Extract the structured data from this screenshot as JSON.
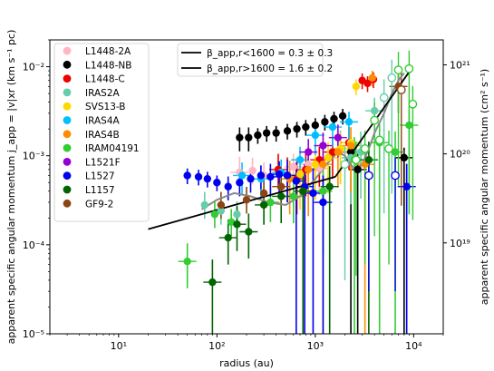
{
  "chart_data": {
    "type": "scatter",
    "xlabel": "radius (au)",
    "ylabel": "apparent specific angular momentum j_app = |v|xr (km s⁻¹ pc)",
    "ylabel_right": "apparent specific angular momentum (cm² s⁻¹)",
    "x_scale": "log",
    "y_scale": "log",
    "xlim": [
      2,
      20000
    ],
    "ylim": [
      1e-05,
      0.02
    ],
    "x_ticks": [
      {
        "v": 10,
        "label": "10¹"
      },
      {
        "v": 100,
        "label": "10²"
      },
      {
        "v": 1000,
        "label": "10³"
      },
      {
        "v": 10000,
        "label": "10⁴"
      }
    ],
    "y_ticks": [
      {
        "v": 1e-05,
        "label": "10⁻⁵"
      },
      {
        "v": 0.0001,
        "label": "10⁻⁴"
      },
      {
        "v": 0.001,
        "label": "10⁻³"
      },
      {
        "v": 0.01,
        "label": "10⁻²"
      }
    ],
    "y_right_ticks": [
      {
        "v": 3.24e+19,
        "label": "10¹⁹"
      },
      {
        "v": 3.24e+20,
        "label": "10²⁰"
      },
      {
        "v": 3.24e+21,
        "label": "10²¹"
      }
    ],
    "fits": [
      {
        "name": "β_app,r<1600 = 0.3 ± 0.3",
        "x": [
          20,
          1600
        ],
        "y": [
          0.00015,
          0.00058
        ],
        "color": "#000000"
      },
      {
        "name": "β_app,r>1600 = 1.6 ± 0.2",
        "x": [
          1600,
          9500
        ],
        "y": [
          0.00058,
          0.0095
        ],
        "color": "#000000"
      }
    ],
    "series": [
      {
        "name": "L1448-2A",
        "color": "#ffb6c1",
        "points": [
          [
            170,
            0.00065,
            0.55,
            1.5
          ],
          [
            230,
            0.00068,
            0.7,
            1.4
          ],
          [
            300,
            0.0006,
            0.7,
            1.4
          ],
          [
            420,
            0.0007,
            0.6,
            1.5
          ],
          [
            600,
            0.00075,
            0.6,
            1.4
          ],
          [
            850,
            0.0008,
            0.5,
            1.5
          ],
          [
            1100,
            0.00072,
            0.5,
            1.5
          ]
        ]
      },
      {
        "name": "L1448-NB",
        "color": "#000000",
        "points": [
          [
            170,
            0.0016,
            0.7,
            1.3
          ],
          [
            210,
            0.0016,
            0.7,
            1.3
          ],
          [
            260,
            0.0017,
            0.8,
            1.2
          ],
          [
            320,
            0.0018,
            0.8,
            1.2
          ],
          [
            400,
            0.0018,
            0.8,
            1.2
          ],
          [
            520,
            0.0019,
            0.8,
            1.2
          ],
          [
            650,
            0.002,
            0.8,
            1.2
          ],
          [
            800,
            0.0021,
            0.8,
            1.2
          ],
          [
            1000,
            0.0022,
            0.8,
            1.2
          ],
          [
            1250,
            0.0024,
            0.8,
            1.2
          ],
          [
            1550,
            0.0026,
            0.8,
            1.2
          ],
          [
            1900,
            0.0028,
            0.8,
            1.2
          ],
          [
            2300,
            0.0011,
            1.5e-05,
            1.4
          ],
          [
            2700,
            0.0007,
            1.5e-05,
            1.5
          ],
          [
            8000,
            0.00095,
            1.5e-05,
            1.3
          ]
        ]
      },
      {
        "name": "L1448-C",
        "color": "#ee0000",
        "points": [
          [
            420,
            0.0007,
            0.6,
            1.5
          ],
          [
            520,
            0.0006,
            0.5,
            1.6
          ],
          [
            650,
            0.00055,
            0.4,
            1.7
          ],
          [
            800,
            0.0007,
            0.5,
            1.5
          ],
          [
            1100,
            0.0009,
            0.5,
            1.4
          ],
          [
            1500,
            0.0011,
            0.5,
            1.5
          ],
          [
            2200,
            0.0014,
            0.5,
            1.5
          ],
          [
            3000,
            0.007,
            0.8,
            1.2
          ],
          [
            3400,
            0.0065,
            0.8,
            1.2
          ],
          [
            3900,
            0.0072,
            0.8,
            1.2
          ]
        ]
      },
      {
        "name": "IRAS2A",
        "color": "#66cdaa",
        "points": [
          [
            75,
            0.00028,
            0.7,
            1.4
          ],
          [
            110,
            0.00024,
            0.7,
            1.4
          ],
          [
            160,
            0.00022,
            0.7,
            1.4
          ],
          [
            1800,
            0.0012,
            0.4,
            1.6
          ],
          [
            2300,
            0.00095,
            0.3,
            1.7
          ],
          [
            2900,
            0.0011,
            0.3,
            1.7
          ],
          [
            4000,
            0.0032,
            0.5,
            1.4
          ]
        ]
      },
      {
        "name": "SVS13-B",
        "color": "#ffd700",
        "points": [
          [
            700,
            0.00062,
            0.4,
            1.6
          ],
          [
            1000,
            0.0008,
            0.4,
            1.6
          ],
          [
            1350,
            0.00095,
            0.4,
            1.5
          ],
          [
            1800,
            0.0012,
            0.4,
            1.5
          ],
          [
            2300,
            0.0014,
            0.4,
            1.5
          ],
          [
            2600,
            0.006,
            0.8,
            1.2
          ]
        ]
      },
      {
        "name": "IRAS4A",
        "color": "#00bfff",
        "points": [
          [
            180,
            0.0006,
            0.6,
            1.4
          ],
          [
            280,
            0.00055,
            0.6,
            1.4
          ],
          [
            450,
            0.00065,
            0.6,
            1.4
          ],
          [
            700,
            0.0009,
            0.6,
            1.4
          ],
          [
            1000,
            0.0017,
            0.6,
            1.3
          ],
          [
            1500,
            0.0021,
            0.6,
            1.3
          ],
          [
            2200,
            0.0024,
            0.6,
            1.3
          ]
        ]
      },
      {
        "name": "IRAS4B",
        "color": "#ff8c00",
        "points": [
          [
            550,
            0.00055,
            0.4,
            1.6
          ],
          [
            850,
            0.0007,
            0.3,
            1.7
          ],
          [
            1200,
            0.0008,
            1.5e-05,
            1.6
          ],
          [
            1700,
            0.0011,
            0.4,
            1.5
          ],
          [
            2300,
            0.0013,
            0.3,
            1.6
          ],
          [
            3200,
            0.0008,
            1.5e-05,
            1.7
          ],
          [
            3800,
            0.0075,
            0.8,
            1.2
          ]
        ]
      },
      {
        "name": "IRAM04191",
        "color": "#33cc33",
        "points": [
          [
            50,
            6.5e-05,
            0.5,
            1.6
          ],
          [
            95,
            0.00022,
            0.7,
            1.4
          ],
          [
            140,
            0.00018,
            0.7,
            1.4
          ],
          [
            350,
            0.0003,
            0.6,
            1.5
          ],
          [
            600,
            0.00035,
            0.5,
            1.6
          ],
          [
            1200,
            0.0004,
            0.2,
            1.8
          ],
          [
            2500,
            0.0009,
            1.5e-05,
            1.8
          ],
          [
            4500,
            0.0014,
            1.5e-05,
            1.6
          ],
          [
            6500,
            0.0011,
            1.5e-05,
            1.7
          ],
          [
            9000,
            0.0022,
            0.1,
            1.5
          ]
        ]
      },
      {
        "name": "L1521F",
        "color": "#9400d3",
        "points": [
          [
            850,
            0.0011,
            0.6,
            1.4
          ],
          [
            1200,
            0.0013,
            0.6,
            1.4
          ],
          [
            1700,
            0.0016,
            0.6,
            1.4
          ]
        ]
      },
      {
        "name": "L1527",
        "color": "#0000ee",
        "points": [
          [
            50,
            0.0006,
            0.8,
            1.2
          ],
          [
            65,
            0.00058,
            0.8,
            1.2
          ],
          [
            80,
            0.00055,
            0.8,
            1.2
          ],
          [
            100,
            0.0005,
            0.8,
            1.2
          ],
          [
            130,
            0.00045,
            0.7,
            1.3
          ],
          [
            170,
            0.0005,
            0.7,
            1.3
          ],
          [
            220,
            0.00055,
            0.7,
            1.3
          ],
          [
            280,
            0.0006,
            0.7,
            1.3
          ],
          [
            350,
            0.00058,
            0.6,
            1.4
          ],
          [
            430,
            0.00062,
            0.6,
            1.4
          ],
          [
            520,
            0.0006,
            0.5,
            1.5
          ],
          [
            640,
            0.00052,
            1.5e-05,
            1.6
          ],
          [
            780,
            0.00045,
            1.5e-05,
            1.8
          ],
          [
            950,
            0.00038,
            1.5e-05,
            1.9
          ],
          [
            1200,
            0.0003,
            1.5e-05,
            2
          ],
          [
            8500,
            0.00045,
            1.5e-05,
            1.8
          ]
        ]
      },
      {
        "name": "L1157",
        "color": "#006400",
        "points": [
          [
            90,
            3.8e-05,
            0.25,
            1.8
          ],
          [
            130,
            0.00012,
            0.5,
            1.6
          ],
          [
            160,
            0.00017,
            0.5,
            1.6
          ],
          [
            210,
            0.00014,
            0.5,
            1.6
          ],
          [
            300,
            0.00028,
            0.6,
            1.5
          ],
          [
            450,
            0.00035,
            0.5,
            1.6
          ],
          [
            750,
            0.0004,
            1.5e-05,
            1.7
          ],
          [
            1400,
            0.00045,
            1.5e-05,
            1.7
          ],
          [
            3500,
            0.0009,
            1.5e-05,
            1.6
          ]
        ]
      },
      {
        "name": "GF9-2",
        "color": "#8b4513",
        "points": [
          [
            110,
            0.00028,
            0.7,
            1.4
          ],
          [
            200,
            0.00032,
            0.7,
            1.4
          ],
          [
            300,
            0.00038,
            0.7,
            1.4
          ],
          [
            450,
            0.00045,
            0.6,
            1.4
          ],
          [
            7000,
            0.006,
            0.5,
            1.4
          ]
        ]
      }
    ],
    "open_markers": [
      {
        "x": 2000,
        "y": 0.0008,
        "color": "#66cdaa"
      },
      {
        "x": 2600,
        "y": 0.0009,
        "color": "#33cc33"
      },
      {
        "x": 3200,
        "y": 0.0012,
        "color": "#33cc33"
      },
      {
        "x": 4000,
        "y": 0.0025,
        "color": "#33cc33"
      },
      {
        "x": 5000,
        "y": 0.0045,
        "color": "#66cdaa"
      },
      {
        "x": 5600,
        "y": 0.0012,
        "color": "#33cc33"
      },
      {
        "x": 6000,
        "y": 0.0075,
        "color": "#66cdaa"
      },
      {
        "x": 7000,
        "y": 0.0092,
        "color": "#33cc33"
      },
      {
        "x": 7500,
        "y": 0.0055,
        "color": "#8b4513"
      },
      {
        "x": 3500,
        "y": 0.0006,
        "color": "#0000ee"
      },
      {
        "x": 6500,
        "y": 0.0006,
        "color": "#0000ee"
      },
      {
        "x": 9000,
        "y": 0.0095,
        "color": "#33cc33"
      },
      {
        "x": 9800,
        "y": 0.0038,
        "color": "#33cc33"
      },
      {
        "x": 4500,
        "y": 0.0015,
        "color": "#33cc33"
      }
    ],
    "gray_curve": {
      "color": "#888888",
      "x": [
        70,
        100,
        150,
        220,
        330,
        500,
        700,
        1000,
        1300,
        1700,
        2000,
        2500,
        3000,
        3500,
        4000,
        5000,
        6000,
        7000,
        8000
      ],
      "y": [
        0.00025,
        0.00032,
        0.00038,
        0.00035,
        0.0003,
        0.00028,
        0.00035,
        0.00055,
        0.0008,
        0.0011,
        0.001,
        0.0007,
        0.0008,
        0.0012,
        0.0018,
        0.003,
        0.005,
        0.007,
        0.0085
      ]
    },
    "legend": {
      "placement": "upper-left",
      "fit_placement": "top-center"
    }
  }
}
